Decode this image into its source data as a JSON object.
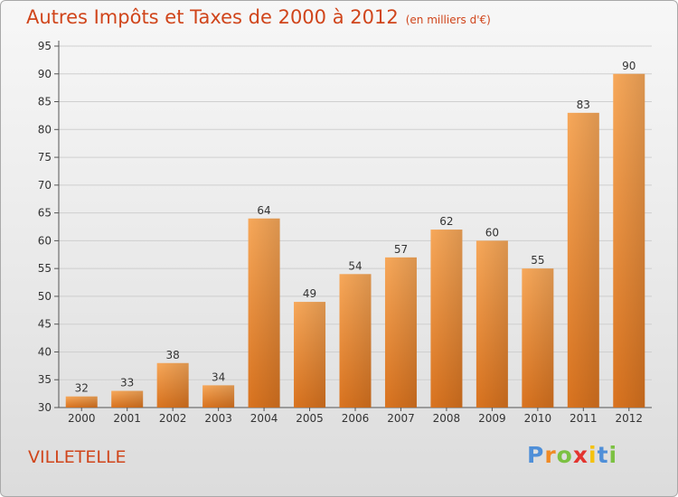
{
  "title": "Autres Impôts et Taxes de 2000 à 2012",
  "unit_label": "(en milliers d'€)",
  "place_name": "VILLETELLE",
  "logo": {
    "letters": [
      "P",
      "r",
      "o",
      "x",
      "i",
      "t",
      "i"
    ],
    "colors": [
      "#4f8fd8",
      "#f08a24",
      "#7cc142",
      "#e3342f",
      "#f4c20d",
      "#4f8fd8",
      "#7cc142"
    ]
  },
  "colors": {
    "title": "#d0451b",
    "bar_light": "#f7a85a",
    "bar_dark": "#d9731f",
    "grid": "#cfcfcf",
    "axis_text": "#333333"
  },
  "chart_data": {
    "type": "bar",
    "title": "Autres Impôts et Taxes de 2000 à 2012",
    "categories": [
      "2000",
      "2001",
      "2002",
      "2003",
      "2004",
      "2005",
      "2006",
      "2007",
      "2008",
      "2009",
      "2010",
      "2011",
      "2012"
    ],
    "values": [
      32,
      33,
      38,
      34,
      64,
      49,
      54,
      57,
      62,
      60,
      55,
      83,
      90
    ],
    "ylim": [
      30,
      95
    ],
    "yticks": [
      30,
      35,
      40,
      45,
      50,
      55,
      60,
      65,
      70,
      75,
      80,
      85,
      90,
      95
    ],
    "grid": true,
    "data_labels": true
  }
}
